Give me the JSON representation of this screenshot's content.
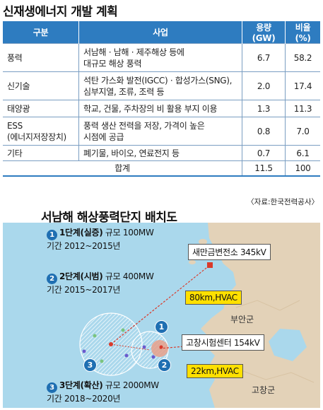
{
  "title": "신재생에너지 개발 계획",
  "table": {
    "headers": [
      "구분",
      "사업",
      "용량(GW)",
      "비율(%)"
    ],
    "rows": [
      {
        "category": "풍력",
        "project_lines": [
          "서남해 · 남해 · 제주해상 등에",
          "대규모 해상 풍력"
        ],
        "capacity": "6.7",
        "ratio": "58.2"
      },
      {
        "category": "신기술",
        "project_lines": [
          "석탄 가스화 발전(IGCC) · 합성가스(SNG),",
          "심부지열, 조류, 조력 등"
        ],
        "capacity": "2.0",
        "ratio": "17.4"
      },
      {
        "category": "태양광",
        "project_lines": [
          "학교, 건물, 주차장의 비 활용 부지 이용"
        ],
        "capacity": "1.3",
        "ratio": "11.3"
      },
      {
        "category": "ESS",
        "category_sub": "(에너지저장장치)",
        "project_lines": [
          "풍력 생산 전력을 저장, 가격이 높은",
          "시점에 공급"
        ],
        "capacity": "0.8",
        "ratio": "7.0"
      },
      {
        "category": "기타",
        "project_lines": [
          "폐기물, 바이오, 연료전지 등"
        ],
        "capacity": "0.7",
        "ratio": "6.1"
      }
    ],
    "total": {
      "label": "합계",
      "capacity": "11.5",
      "ratio": "100"
    }
  },
  "source": "〈자료:한국전력공사〉",
  "map": {
    "title": "서남해 해상풍력단지 배치도",
    "phases": [
      {
        "num": "1",
        "name": "1단계(실증)",
        "scale": "규모 100MW",
        "period": "기간 2012~2015년"
      },
      {
        "num": "2",
        "name": "2단계(시범)",
        "scale": "규모 400MW",
        "period": "기간 2015~2017년"
      },
      {
        "num": "3",
        "name": "3단계(확산)",
        "scale": "규모 2000MW",
        "period": "기간 2018~2020년"
      }
    ],
    "labels": {
      "substation": "새만금변전소 345kV",
      "hvac_80": "80km,HVAC",
      "buan": "부안군",
      "test_center": "고창시험센터 154kV",
      "hvac_22": "22km,HVAC",
      "gochang": "고창군"
    },
    "colors": {
      "sea": "#aad8ec",
      "land": "#e3d2b8",
      "accent": "#1f6fb2",
      "cable": "#d93a2b",
      "label_yellow": "#ffe000"
    }
  }
}
